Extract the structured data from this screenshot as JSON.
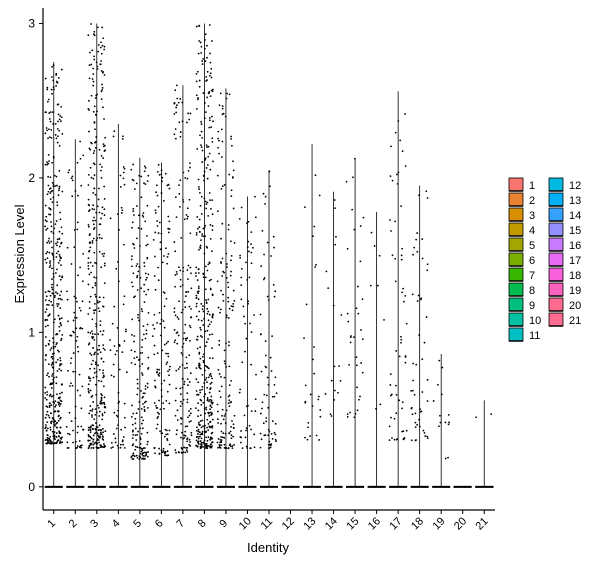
{
  "chart_data": {
    "type": "scatter",
    "subtype": "violin-jitter",
    "ylabel": "Expression Level",
    "xlabel": "Identity",
    "ylim": [
      -0.15,
      3.1
    ],
    "yticks": [
      0,
      1,
      2,
      3
    ],
    "legend_position": "right",
    "legend_columns": 2,
    "categories": [
      "1",
      "2",
      "3",
      "4",
      "5",
      "6",
      "7",
      "8",
      "9",
      "10",
      "11",
      "12",
      "13",
      "14",
      "15",
      "16",
      "17",
      "18",
      "19",
      "20",
      "21"
    ],
    "colors": [
      "#F8766D",
      "#EA8331",
      "#D89000",
      "#C09B00",
      "#A3A500",
      "#7CAE00",
      "#39B600",
      "#00BB4E",
      "#00BF7D",
      "#00C1A3",
      "#00BFC4",
      "#00BAE0",
      "#00B0F6",
      "#35A2FF",
      "#9590FF",
      "#C77CFF",
      "#E76BF3",
      "#FA62DB",
      "#FF62BC",
      "#FF6C90",
      "#FF6C90"
    ],
    "max_values": [
      2.75,
      2.25,
      3.0,
      2.35,
      2.13,
      2.1,
      2.6,
      3.0,
      2.58,
      1.88,
      2.05,
      0,
      2.22,
      1.91,
      2.13,
      1.78,
      2.56,
      1.95,
      0.86,
      0,
      0.56
    ],
    "nonzero_counts": [
      420,
      90,
      380,
      70,
      200,
      140,
      180,
      400,
      160,
      60,
      70,
      0,
      28,
      18,
      35,
      8,
      60,
      50,
      14,
      0,
      2
    ],
    "nonzero_ranges": [
      [
        0.28,
        2.75
      ],
      [
        0.25,
        2.25
      ],
      [
        0.25,
        3.0
      ],
      [
        0.25,
        2.35
      ],
      [
        0.18,
        2.13
      ],
      [
        0.2,
        2.1
      ],
      [
        0.22,
        2.6
      ],
      [
        0.25,
        3.0
      ],
      [
        0.25,
        2.58
      ],
      [
        0.25,
        1.88
      ],
      [
        0.25,
        2.05
      ],
      [
        0,
        0
      ],
      [
        0.3,
        2.22
      ],
      [
        0.45,
        1.91
      ],
      [
        0.45,
        2.13
      ],
      [
        0.5,
        1.78
      ],
      [
        0.3,
        2.56
      ],
      [
        0.3,
        1.95
      ],
      [
        0.18,
        0.86
      ],
      [
        0,
        0
      ],
      [
        0.45,
        0.56
      ]
    ]
  }
}
